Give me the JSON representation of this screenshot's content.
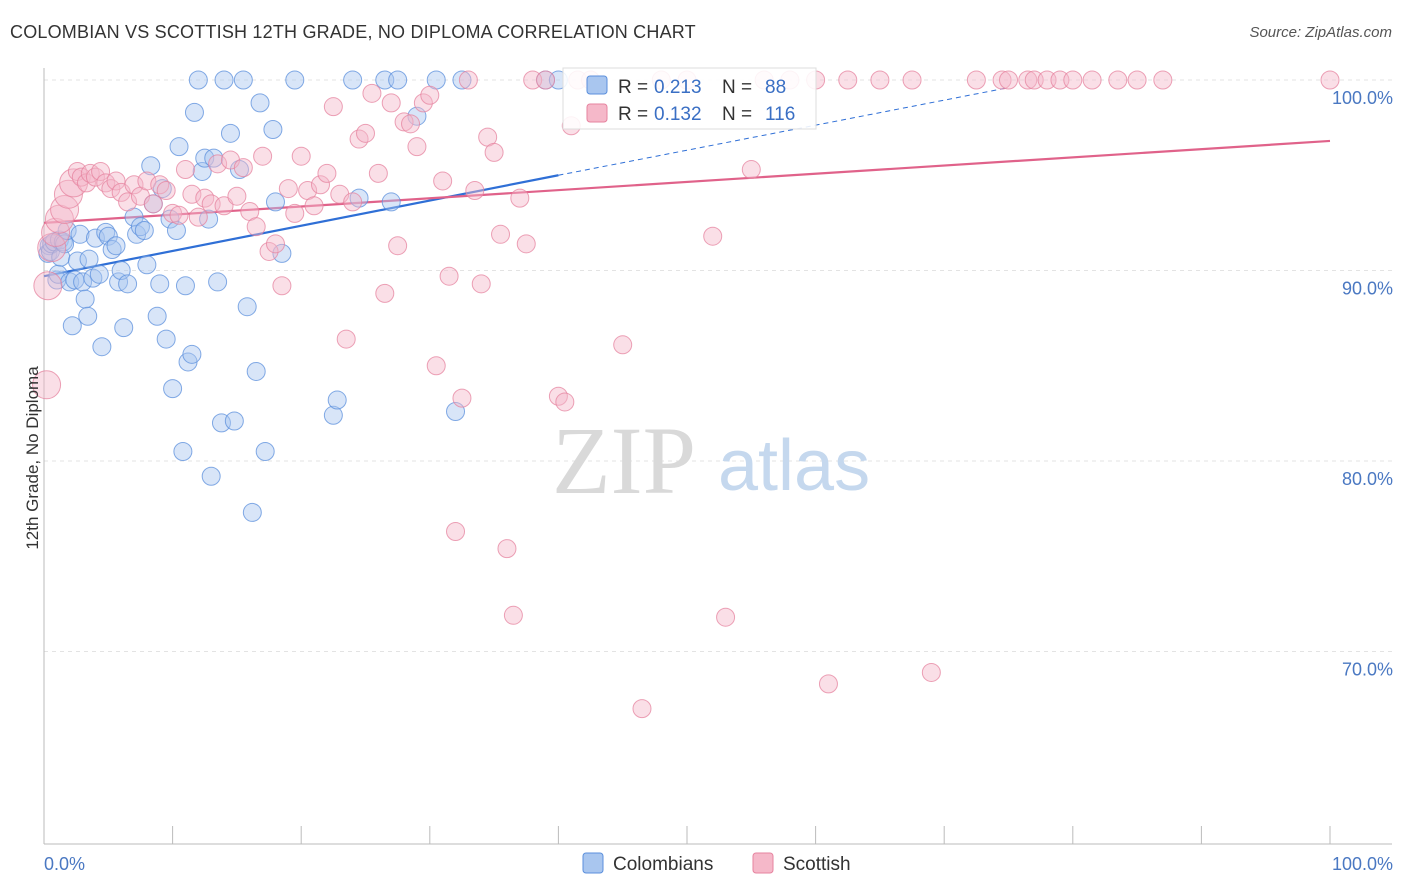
{
  "header": {
    "title": "COLOMBIAN VS SCOTTISH 12TH GRADE, NO DIPLOMA CORRELATION CHART",
    "source": "Source: ZipAtlas.com"
  },
  "watermark": {
    "zip": "ZIP",
    "atlas": "atlas"
  },
  "chart_data": {
    "type": "scatter",
    "title": "COLOMBIAN VS SCOTTISH 12TH GRADE, NO DIPLOMA CORRELATION CHART",
    "ylabel": "12th Grade, No Diploma",
    "xlabel": "",
    "xlim": [
      0,
      100
    ],
    "ylim": [
      60.5,
      101.5
    ],
    "x_ticks": [
      0,
      10,
      20,
      30,
      40,
      50,
      60,
      70,
      80,
      90,
      100
    ],
    "x_tick_labels": {
      "0": "0.0%",
      "100": "100.0%"
    },
    "y_ticks": [
      70,
      80,
      90,
      100
    ],
    "y_tick_labels": [
      "70.0%",
      "80.0%",
      "90.0%",
      "100.0%"
    ],
    "grid": true,
    "legend_position": "bottom-center",
    "stats_box_position": "top-center",
    "series": [
      {
        "name": "Colombians",
        "color": "#5b8fdc",
        "fill": "#a9c6ef",
        "R": "0.213",
        "N": "88",
        "trend": {
          "x0": 0,
          "y0": 89.7,
          "x1": 40,
          "y1": 95.0,
          "dashed_to_x": 75,
          "dashed_to_y": 99.6
        },
        "points": [
          [
            0.3,
            90.9
          ],
          [
            0.4,
            91.3
          ],
          [
            0.5,
            91.0
          ],
          [
            0.6,
            91.4
          ],
          [
            0.8,
            91.5
          ],
          [
            1.0,
            89.5
          ],
          [
            1.1,
            89.8
          ],
          [
            1.2,
            91.6
          ],
          [
            1.3,
            90.7
          ],
          [
            1.5,
            91.5
          ],
          [
            1.6,
            91.4
          ],
          [
            1.8,
            92.1
          ],
          [
            2.0,
            89.4
          ],
          [
            2.2,
            87.1
          ],
          [
            2.4,
            89.5
          ],
          [
            2.6,
            90.5
          ],
          [
            2.8,
            91.9
          ],
          [
            3.0,
            89.4
          ],
          [
            3.2,
            88.5
          ],
          [
            3.4,
            87.6
          ],
          [
            3.5,
            90.6
          ],
          [
            3.8,
            89.6
          ],
          [
            4.0,
            91.7
          ],
          [
            4.3,
            89.8
          ],
          [
            4.5,
            86.0
          ],
          [
            4.8,
            92.0
          ],
          [
            5.0,
            91.8
          ],
          [
            5.3,
            91.1
          ],
          [
            5.6,
            91.3
          ],
          [
            5.8,
            89.4
          ],
          [
            6.0,
            90.0
          ],
          [
            6.2,
            87.0
          ],
          [
            6.5,
            89.3
          ],
          [
            7.0,
            92.8
          ],
          [
            7.2,
            91.9
          ],
          [
            7.5,
            92.3
          ],
          [
            7.8,
            92.1
          ],
          [
            8.0,
            90.3
          ],
          [
            8.3,
            95.5
          ],
          [
            8.5,
            93.5
          ],
          [
            8.8,
            87.6
          ],
          [
            9.0,
            89.3
          ],
          [
            9.2,
            94.3
          ],
          [
            9.5,
            86.4
          ],
          [
            9.8,
            92.7
          ],
          [
            10.0,
            83.8
          ],
          [
            10.3,
            92.1
          ],
          [
            10.5,
            96.5
          ],
          [
            10.8,
            80.5
          ],
          [
            11.0,
            89.2
          ],
          [
            11.2,
            85.2
          ],
          [
            11.5,
            85.6
          ],
          [
            11.7,
            98.3
          ],
          [
            12.0,
            100
          ],
          [
            12.3,
            95.2
          ],
          [
            12.5,
            95.9
          ],
          [
            12.8,
            92.7
          ],
          [
            13.0,
            79.2
          ],
          [
            13.2,
            95.9
          ],
          [
            13.5,
            89.4
          ],
          [
            13.8,
            82.0
          ],
          [
            14.0,
            100
          ],
          [
            14.5,
            97.2
          ],
          [
            14.8,
            82.1
          ],
          [
            15.2,
            95.3
          ],
          [
            15.5,
            100
          ],
          [
            15.8,
            88.1
          ],
          [
            16.2,
            77.3
          ],
          [
            16.5,
            84.7
          ],
          [
            16.8,
            98.8
          ],
          [
            17.2,
            80.5
          ],
          [
            17.8,
            97.4
          ],
          [
            18.0,
            93.6
          ],
          [
            18.5,
            90.9
          ],
          [
            19.5,
            100
          ],
          [
            22.5,
            82.4
          ],
          [
            22.8,
            83.2
          ],
          [
            24.0,
            100
          ],
          [
            24.5,
            93.8
          ],
          [
            26.5,
            100
          ],
          [
            27.0,
            93.6
          ],
          [
            27.5,
            100
          ],
          [
            29.0,
            98.1
          ],
          [
            30.5,
            100
          ],
          [
            32.0,
            82.6
          ],
          [
            32.5,
            100
          ],
          [
            39.0,
            100
          ],
          [
            40.0,
            100
          ]
        ]
      },
      {
        "name": "Scottish",
        "color": "#e6839f",
        "fill": "#f5b8c9",
        "R": "0.132",
        "N": "116",
        "trend": {
          "x0": 0,
          "y0": 92.5,
          "x1": 100,
          "y1": 96.8
        },
        "points": [
          [
            0.2,
            84.0
          ],
          [
            0.3,
            89.2
          ],
          [
            0.6,
            91.2
          ],
          [
            0.9,
            92.0
          ],
          [
            1.2,
            92.7
          ],
          [
            1.6,
            93.2
          ],
          [
            1.9,
            94.0
          ],
          [
            2.3,
            94.6
          ],
          [
            2.6,
            95.2
          ],
          [
            2.9,
            94.9
          ],
          [
            3.3,
            94.6
          ],
          [
            3.6,
            95.1
          ],
          [
            4.0,
            94.9
          ],
          [
            4.4,
            95.2
          ],
          [
            4.8,
            94.6
          ],
          [
            5.2,
            94.3
          ],
          [
            5.6,
            94.7
          ],
          [
            6.0,
            94.1
          ],
          [
            6.5,
            93.6
          ],
          [
            7.0,
            94.5
          ],
          [
            7.5,
            93.9
          ],
          [
            8.0,
            94.7
          ],
          [
            8.5,
            93.5
          ],
          [
            9.0,
            94.5
          ],
          [
            9.5,
            94.2
          ],
          [
            10.0,
            93.0
          ],
          [
            10.5,
            92.9
          ],
          [
            11.0,
            95.3
          ],
          [
            11.5,
            94.0
          ],
          [
            12.0,
            92.8
          ],
          [
            12.5,
            93.8
          ],
          [
            13.0,
            93.5
          ],
          [
            13.5,
            95.6
          ],
          [
            14.0,
            93.4
          ],
          [
            14.5,
            95.8
          ],
          [
            15.0,
            93.9
          ],
          [
            15.5,
            95.4
          ],
          [
            16.0,
            93.1
          ],
          [
            16.5,
            92.3
          ],
          [
            17.0,
            96.0
          ],
          [
            17.5,
            91.0
          ],
          [
            18.0,
            91.4
          ],
          [
            18.5,
            89.2
          ],
          [
            19.0,
            94.3
          ],
          [
            19.5,
            93.0
          ],
          [
            20.0,
            96.0
          ],
          [
            20.5,
            94.2
          ],
          [
            21.0,
            93.4
          ],
          [
            21.5,
            94.5
          ],
          [
            22.0,
            95.1
          ],
          [
            22.5,
            98.6
          ],
          [
            23.0,
            94.0
          ],
          [
            23.5,
            86.4
          ],
          [
            24.0,
            93.6
          ],
          [
            24.5,
            96.9
          ],
          [
            25.0,
            97.2
          ],
          [
            25.5,
            99.3
          ],
          [
            26.0,
            95.1
          ],
          [
            26.5,
            88.8
          ],
          [
            27.0,
            98.8
          ],
          [
            27.5,
            91.3
          ],
          [
            28.0,
            97.8
          ],
          [
            28.5,
            97.7
          ],
          [
            29.0,
            96.5
          ],
          [
            29.5,
            98.8
          ],
          [
            30.0,
            99.2
          ],
          [
            30.5,
            85.0
          ],
          [
            31.0,
            94.7
          ],
          [
            31.5,
            89.7
          ],
          [
            32.0,
            76.3
          ],
          [
            32.5,
            83.3
          ],
          [
            33.0,
            100
          ],
          [
            33.5,
            94.2
          ],
          [
            34.0,
            89.3
          ],
          [
            34.5,
            97.0
          ],
          [
            35.0,
            96.2
          ],
          [
            35.5,
            91.9
          ],
          [
            36.0,
            75.4
          ],
          [
            36.5,
            71.9
          ],
          [
            37.0,
            93.8
          ],
          [
            37.5,
            91.4
          ],
          [
            38.0,
            100
          ],
          [
            39.0,
            100
          ],
          [
            40.0,
            83.4
          ],
          [
            40.5,
            83.1
          ],
          [
            41.0,
            97.6
          ],
          [
            41.5,
            100
          ],
          [
            42.5,
            100
          ],
          [
            45.0,
            86.1
          ],
          [
            46.5,
            67.0
          ],
          [
            48.0,
            100
          ],
          [
            50.0,
            100
          ],
          [
            52.0,
            91.8
          ],
          [
            53.0,
            71.8
          ],
          [
            55.0,
            95.3
          ],
          [
            56.0,
            100
          ],
          [
            58.0,
            100
          ],
          [
            60.0,
            100
          ],
          [
            61.0,
            68.3
          ],
          [
            62.5,
            100
          ],
          [
            65.0,
            100
          ],
          [
            67.5,
            100
          ],
          [
            69.0,
            68.9
          ],
          [
            72.5,
            100
          ],
          [
            74.5,
            100
          ],
          [
            75.0,
            100
          ],
          [
            76.5,
            100
          ],
          [
            77.0,
            100
          ],
          [
            78.0,
            100
          ],
          [
            79.0,
            100
          ],
          [
            80.0,
            100
          ],
          [
            81.5,
            100
          ],
          [
            83.5,
            100
          ],
          [
            85.0,
            100
          ],
          [
            87.0,
            100
          ],
          [
            100.0,
            100
          ]
        ]
      }
    ]
  },
  "legend": {
    "items": [
      {
        "label": "Colombians"
      },
      {
        "label": "Scottish"
      }
    ]
  },
  "stats": {
    "r_label": "R =",
    "n_label": "N =",
    "rows": [
      {
        "r": "0.213",
        "n": "88"
      },
      {
        "r": "0.132",
        "n": "116"
      }
    ]
  }
}
